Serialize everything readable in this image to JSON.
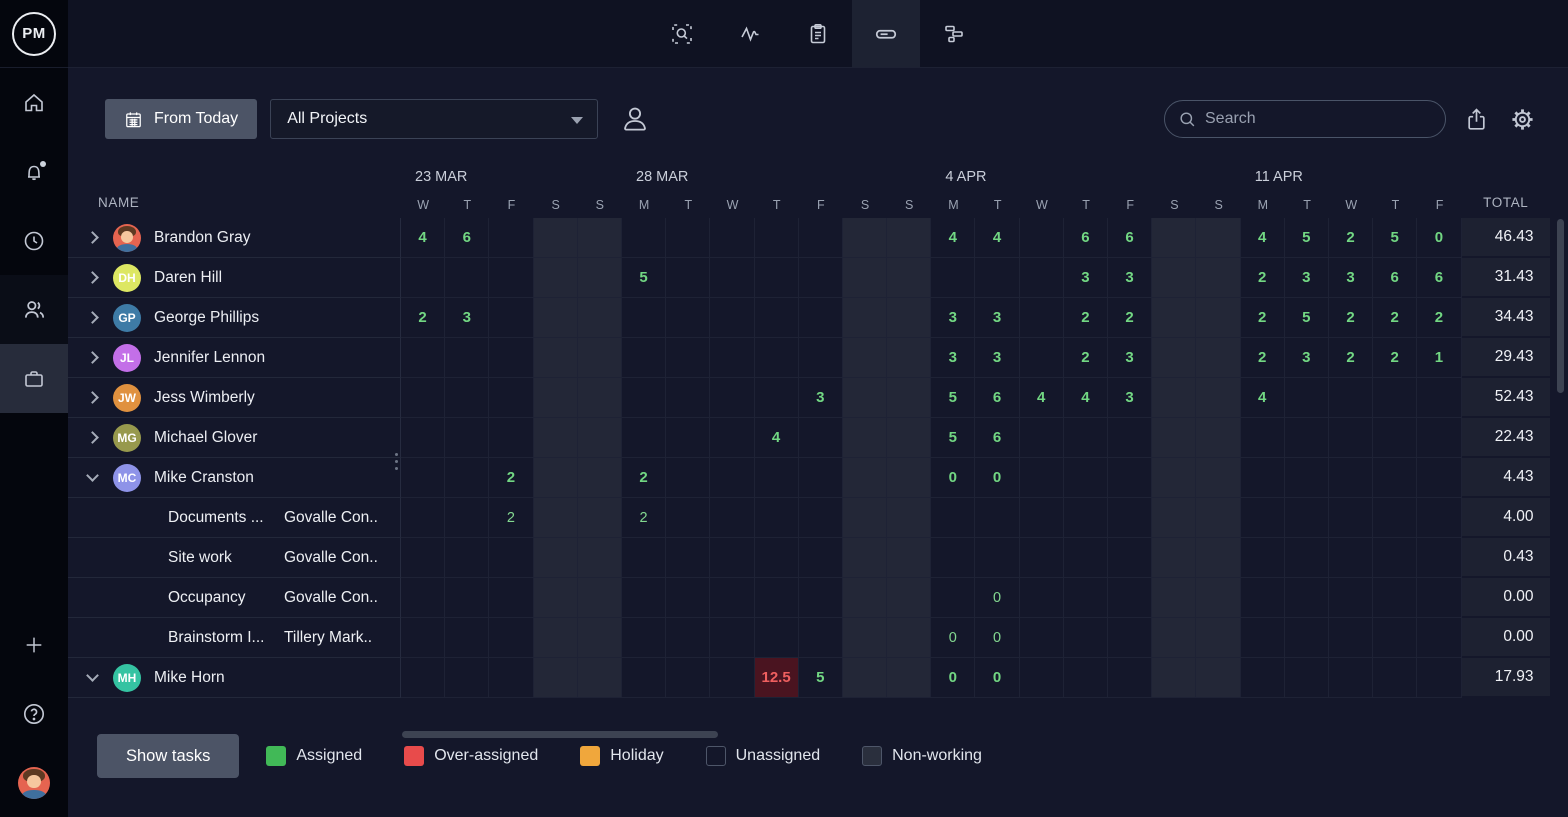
{
  "app": {
    "logo": "PM"
  },
  "sidebar": {
    "items": [
      "home",
      "notifications",
      "time",
      "team",
      "projects"
    ],
    "active_item": "projects",
    "footer_items": [
      "add",
      "help",
      "user-avatar"
    ]
  },
  "topbar": {
    "tabs": [
      "zoom-search",
      "activity",
      "notes",
      "workload",
      "gantt"
    ],
    "active_tab": "workload"
  },
  "filters": {
    "from_today_label": "From Today",
    "projects_dropdown_value": "All Projects",
    "search_placeholder": "Search"
  },
  "grid": {
    "name_header": "NAME",
    "total_header": "TOTAL",
    "weeks": [
      {
        "label": "23 MAR",
        "days": [
          "W",
          "T",
          "F",
          "S",
          "S"
        ]
      },
      {
        "label": "28 MAR",
        "days": [
          "M",
          "T",
          "W",
          "T",
          "F",
          "S",
          "S"
        ]
      },
      {
        "label": "4 APR",
        "days": [
          "M",
          "T",
          "W",
          "T",
          "F",
          "S",
          "S"
        ]
      },
      {
        "label": "11 APR",
        "days": [
          "M",
          "T",
          "W",
          "T",
          "F"
        ]
      }
    ],
    "rows": [
      {
        "type": "person",
        "name": "Brandon Gray",
        "expanded": false,
        "avatar": {
          "kind": "cartoon",
          "color": "#e56450"
        },
        "cells": {
          "0": "4",
          "1": "6",
          "12": "4",
          "13": "4",
          "15": "6",
          "16": "6",
          "19": "4",
          "20": "5",
          "21": "2",
          "22": "5",
          "23": "0"
        },
        "total": "46.43"
      },
      {
        "type": "person",
        "name": "Daren Hill",
        "expanded": false,
        "avatar": {
          "kind": "initials",
          "text": "DH",
          "color": "#dde763"
        },
        "cells": {
          "5": "5",
          "15": "3",
          "16": "3",
          "19": "2",
          "20": "3",
          "21": "3",
          "22": "6",
          "23": "6"
        },
        "total": "31.43"
      },
      {
        "type": "person",
        "name": "George Phillips",
        "expanded": false,
        "avatar": {
          "kind": "initials",
          "text": "GP",
          "color": "#3e7ba6"
        },
        "cells": {
          "0": "2",
          "1": "3",
          "12": "3",
          "13": "3",
          "15": "2",
          "16": "2",
          "19": "2",
          "20": "5",
          "21": "2",
          "22": "2",
          "23": "2"
        },
        "total": "34.43"
      },
      {
        "type": "person",
        "name": "Jennifer Lennon",
        "expanded": false,
        "avatar": {
          "kind": "initials",
          "text": "JL",
          "color": "#c36fe8"
        },
        "cells": {
          "12": "3",
          "13": "3",
          "15": "2",
          "16": "3",
          "19": "2",
          "20": "3",
          "21": "2",
          "22": "2",
          "23": "1"
        },
        "total": "29.43"
      },
      {
        "type": "person",
        "name": "Jess Wimberly",
        "expanded": false,
        "avatar": {
          "kind": "initials",
          "text": "JW",
          "color": "#e0913f"
        },
        "cells": {
          "9": "3",
          "12": "5",
          "13": "6",
          "14": "4",
          "15": "4",
          "16": "3",
          "19": "4"
        },
        "total": "52.43"
      },
      {
        "type": "person",
        "name": "Michael Glover",
        "expanded": false,
        "avatar": {
          "kind": "initials",
          "text": "MG",
          "color": "#97994d"
        },
        "cells": {
          "8": "4",
          "12": "5",
          "13": "6"
        },
        "total": "22.43"
      },
      {
        "type": "person",
        "name": "Mike Cranston",
        "expanded": true,
        "avatar": {
          "kind": "initials",
          "text": "MC",
          "color": "#8e93e8"
        },
        "cells": {
          "2": "2",
          "5": "2",
          "12": "0",
          "13": "0"
        },
        "total": "4.43"
      },
      {
        "type": "task",
        "task": "Documents ...",
        "project": "Govalle Con..",
        "cells": {
          "2": "2",
          "5": "2"
        },
        "total": "4.00"
      },
      {
        "type": "task",
        "task": "Site work",
        "project": "Govalle Con..",
        "cells": {},
        "total": "0.43"
      },
      {
        "type": "task",
        "task": "Occupancy",
        "project": "Govalle Con..",
        "cells": {
          "13": "0"
        },
        "total": "0.00"
      },
      {
        "type": "task",
        "task": "Brainstorm I...",
        "project": "Tillery Mark..",
        "cells": {
          "12": "0",
          "13": "0"
        },
        "total": "0.00"
      },
      {
        "type": "person",
        "name": "Mike Horn",
        "expanded": true,
        "avatar": {
          "kind": "initials",
          "text": "MH",
          "color": "#35c3a2"
        },
        "cells": {
          "8": {
            "v": "12.5",
            "state": "over"
          },
          "9": "5",
          "12": "0",
          "13": "0"
        },
        "total": "17.93"
      }
    ]
  },
  "footer": {
    "show_tasks_label": "Show tasks",
    "legend": [
      {
        "label": "Assigned",
        "style": "filled",
        "color": "#41b957"
      },
      {
        "label": "Over-assigned",
        "style": "filled",
        "color": "#e84b4b"
      },
      {
        "label": "Holiday",
        "style": "filled",
        "color": "#f0a73c"
      },
      {
        "label": "Unassigned",
        "style": "outline",
        "color": "#4e5669"
      },
      {
        "label": "Non-working",
        "style": "nonworking",
        "color": "#4e5669"
      }
    ]
  },
  "colors": {
    "assigned_text": "#72d783",
    "overassigned_text": "#ef5f5f",
    "overassigned_bg": "#4a1420",
    "weekend_bg": "#232737"
  }
}
